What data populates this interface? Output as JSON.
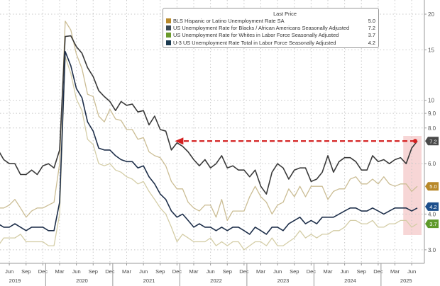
{
  "chart_data": {
    "type": "line",
    "y_scale": "log",
    "ylim": [
      2.7,
      21
    ],
    "y_axis_side": "right",
    "y_ticks": [
      "20",
      "15",
      "10",
      "9.0",
      "8.0",
      "6.0",
      "4.0",
      "3.0"
    ],
    "y_tick_values": [
      20,
      15,
      10,
      9,
      8,
      6,
      4,
      3
    ],
    "x_month_labels": [
      "Jun",
      "Sep",
      "Dec",
      "Mar",
      "Jun",
      "Sep",
      "Dec",
      "Mar",
      "Jun",
      "Sep",
      "Dec",
      "Mar",
      "Jun",
      "Sep",
      "Dec",
      "Mar",
      "Jun",
      "Sep",
      "Dec",
      "Mar",
      "Jun",
      "Sep",
      "Dec",
      "Mar",
      "Jun"
    ],
    "x_month_label_dates": [
      "2019-06",
      "2019-09",
      "2019-12",
      "2020-03",
      "2020-06",
      "2020-09",
      "2020-12",
      "2021-03",
      "2021-06",
      "2021-09",
      "2021-12",
      "2022-03",
      "2022-06",
      "2022-09",
      "2022-12",
      "2023-03",
      "2023-06",
      "2023-09",
      "2023-12",
      "2024-03",
      "2024-06",
      "2024-09",
      "2024-12",
      "2025-03",
      "2025-06"
    ],
    "x_year_labels": [
      "2019",
      "2020",
      "2021",
      "2022",
      "2023",
      "2024",
      "2025"
    ],
    "grid": true,
    "legend": {
      "position": "top",
      "header": "Last Price"
    },
    "x": [
      "2019-04",
      "2019-05",
      "2019-06",
      "2019-07",
      "2019-08",
      "2019-09",
      "2019-10",
      "2019-11",
      "2019-12",
      "2020-01",
      "2020-02",
      "2020-03",
      "2020-04",
      "2020-05",
      "2020-06",
      "2020-07",
      "2020-08",
      "2020-09",
      "2020-10",
      "2020-11",
      "2020-12",
      "2021-01",
      "2021-02",
      "2021-03",
      "2021-04",
      "2021-05",
      "2021-06",
      "2021-07",
      "2021-08",
      "2021-09",
      "2021-10",
      "2021-11",
      "2021-12",
      "2022-01",
      "2022-02",
      "2022-03",
      "2022-04",
      "2022-05",
      "2022-06",
      "2022-07",
      "2022-08",
      "2022-09",
      "2022-10",
      "2022-11",
      "2022-12",
      "2023-01",
      "2023-02",
      "2023-03",
      "2023-04",
      "2023-05",
      "2023-06",
      "2023-07",
      "2023-08",
      "2023-09",
      "2023-10",
      "2023-11",
      "2023-12",
      "2024-01",
      "2024-02",
      "2024-03",
      "2024-04",
      "2024-05",
      "2024-06",
      "2024-07",
      "2024-08",
      "2024-09",
      "2024-10",
      "2024-11",
      "2024-12",
      "2025-01",
      "2025-02",
      "2025-03",
      "2025-04",
      "2025-05",
      "2025-06",
      "2025-07"
    ],
    "series": [
      {
        "name": "BLS Hispanic or Latino Unemployment Rate SA",
        "last": "5.0",
        "color": "#cbbd94",
        "tag_color": "#b8892a",
        "values": [
          4.2,
          4.2,
          4.3,
          4.5,
          4.2,
          3.9,
          4.1,
          4.2,
          4.2,
          4.3,
          4.4,
          6.0,
          18.9,
          17.6,
          14.5,
          12.9,
          10.5,
          10.3,
          8.8,
          8.4,
          9.3,
          8.6,
          8.5,
          7.9,
          7.9,
          7.3,
          7.4,
          6.6,
          6.4,
          6.3,
          5.9,
          5.2,
          4.9,
          4.9,
          4.4,
          4.2,
          4.1,
          4.3,
          4.3,
          3.9,
          4.5,
          3.8,
          4.1,
          4.1,
          4.1,
          4.6,
          5.0,
          4.6,
          4.4,
          4.0,
          4.3,
          4.4,
          4.9,
          4.6,
          5.0,
          4.6,
          5.0,
          5.0,
          5.0,
          4.5,
          4.8,
          4.9,
          4.9,
          5.3,
          5.4,
          5.1,
          5.1,
          5.3,
          5.1,
          5.4,
          5.1,
          5.0,
          5.1,
          5.1,
          4.8,
          5.0
        ]
      },
      {
        "name": "US Unemployment Rate for Blacks / African Americans Seasonally Adjusted",
        "last": "7.2",
        "color": "#3a3a3a",
        "tag_color": "#4a4a4a",
        "values": [
          6.7,
          6.2,
          6.0,
          6.0,
          5.5,
          5.5,
          5.7,
          5.5,
          5.9,
          6.0,
          5.8,
          6.7,
          16.7,
          16.8,
          15.4,
          14.6,
          13.0,
          12.1,
          10.8,
          10.3,
          9.9,
          9.2,
          9.9,
          9.6,
          9.7,
          9.1,
          9.2,
          8.2,
          8.8,
          7.9,
          7.8,
          6.7,
          7.1,
          6.9,
          6.6,
          6.2,
          5.9,
          6.2,
          5.8,
          6.0,
          6.4,
          5.8,
          5.9,
          5.7,
          5.7,
          5.4,
          5.7,
          5.0,
          4.7,
          5.6,
          6.0,
          5.8,
          5.3,
          5.7,
          5.8,
          5.8,
          5.2,
          5.3,
          5.6,
          6.4,
          5.6,
          6.1,
          6.3,
          6.3,
          6.1,
          5.7,
          5.7,
          6.4,
          6.1,
          6.2,
          6.0,
          6.2,
          6.3,
          6.0,
          6.8,
          7.2
        ]
      },
      {
        "name": "US Unemployment Rate for Whites in Labor Force Seasonally Adjusted",
        "last": "3.7",
        "color": "#d4cda6",
        "tag_color": "#5f9a2a",
        "values": [
          3.1,
          3.3,
          3.3,
          3.3,
          3.4,
          3.2,
          3.2,
          3.2,
          3.2,
          3.1,
          3.1,
          4.0,
          14.2,
          12.4,
          10.1,
          9.2,
          7.3,
          7.0,
          6.0,
          5.9,
          6.0,
          5.7,
          5.6,
          5.4,
          5.3,
          5.1,
          5.2,
          4.8,
          4.5,
          4.2,
          4.0,
          3.6,
          3.2,
          3.4,
          3.3,
          3.2,
          3.2,
          3.2,
          3.3,
          3.1,
          3.2,
          3.1,
          3.2,
          3.2,
          3.0,
          3.1,
          3.2,
          3.2,
          3.1,
          3.3,
          3.1,
          3.1,
          3.2,
          3.3,
          3.5,
          3.3,
          3.4,
          3.3,
          3.4,
          3.4,
          3.5,
          3.5,
          3.6,
          3.8,
          3.8,
          3.7,
          3.7,
          3.8,
          3.6,
          3.6,
          3.7,
          3.7,
          3.8,
          3.8,
          3.6,
          3.7
        ]
      },
      {
        "name": "U-3 US Unemployment Rate Total in Labor Force Seasonally Adjusted",
        "last": "4.2",
        "color": "#1e2f4a",
        "tag_color": "#1d4f8c",
        "values": [
          3.7,
          3.6,
          3.6,
          3.7,
          3.6,
          3.5,
          3.6,
          3.6,
          3.6,
          3.5,
          3.5,
          4.4,
          14.8,
          13.2,
          11.0,
          10.2,
          8.4,
          7.8,
          6.8,
          6.7,
          6.7,
          6.4,
          6.2,
          6.1,
          6.1,
          5.8,
          5.9,
          5.4,
          5.1,
          4.7,
          4.5,
          4.1,
          3.9,
          4.0,
          3.8,
          3.6,
          3.7,
          3.6,
          3.6,
          3.5,
          3.6,
          3.5,
          3.6,
          3.6,
          3.5,
          3.4,
          3.6,
          3.5,
          3.4,
          3.6,
          3.6,
          3.5,
          3.7,
          3.8,
          3.9,
          3.7,
          3.8,
          3.7,
          3.9,
          3.9,
          3.9,
          4.0,
          4.1,
          4.2,
          4.2,
          4.1,
          4.1,
          4.2,
          4.1,
          4.0,
          4.1,
          4.2,
          4.2,
          4.2,
          4.1,
          4.2
        ]
      }
    ],
    "annotations": [
      {
        "type": "dashed-arrow",
        "color": "#d42020",
        "y_value": 7.2,
        "from": "2025-07",
        "to": "2021-12"
      },
      {
        "type": "shaded-region",
        "color": "#f4c4c4",
        "from": "2025-05",
        "to": "2025-07"
      }
    ]
  }
}
